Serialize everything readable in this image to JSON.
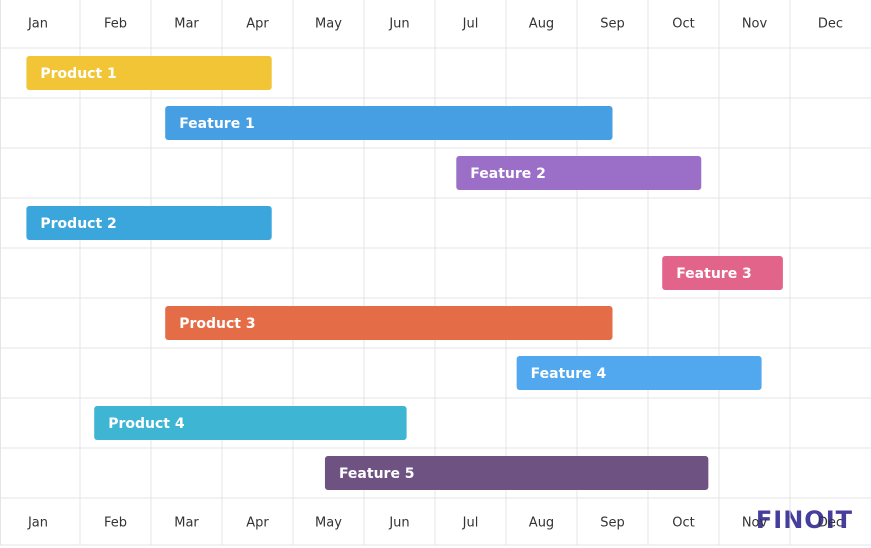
{
  "chart_data": {
    "type": "gantt",
    "categories": [
      "Jan",
      "Feb",
      "Mar",
      "Apr",
      "May",
      "Jun",
      "Jul",
      "Aug",
      "Sep",
      "Oct",
      "Nov",
      "Dec"
    ],
    "tasks": [
      {
        "name": "Product 1",
        "start": 0.33,
        "end": 3.7,
        "color": "#f1c535"
      },
      {
        "name": "Feature 1",
        "start": 2.2,
        "end": 8.5,
        "color": "#479fe3"
      },
      {
        "name": "Feature 2",
        "start": 6.3,
        "end": 9.75,
        "color": "#9b6ec8"
      },
      {
        "name": "Product 2",
        "start": 0.33,
        "end": 3.7,
        "color": "#3aa6db"
      },
      {
        "name": "Feature 3",
        "start": 9.2,
        "end": 10.9,
        "color": "#e2648a"
      },
      {
        "name": "Product 3",
        "start": 2.2,
        "end": 8.5,
        "color": "#e46c47"
      },
      {
        "name": "Feature 4",
        "start": 7.15,
        "end": 10.6,
        "color": "#52a8ef"
      },
      {
        "name": "Product 4",
        "start": 1.2,
        "end": 5.6,
        "color": "#3db5d3"
      },
      {
        "name": "Feature 5",
        "start": 4.45,
        "end": 9.85,
        "color": "#6e5282"
      }
    ],
    "grid": true
  },
  "logo": "FINOIT"
}
